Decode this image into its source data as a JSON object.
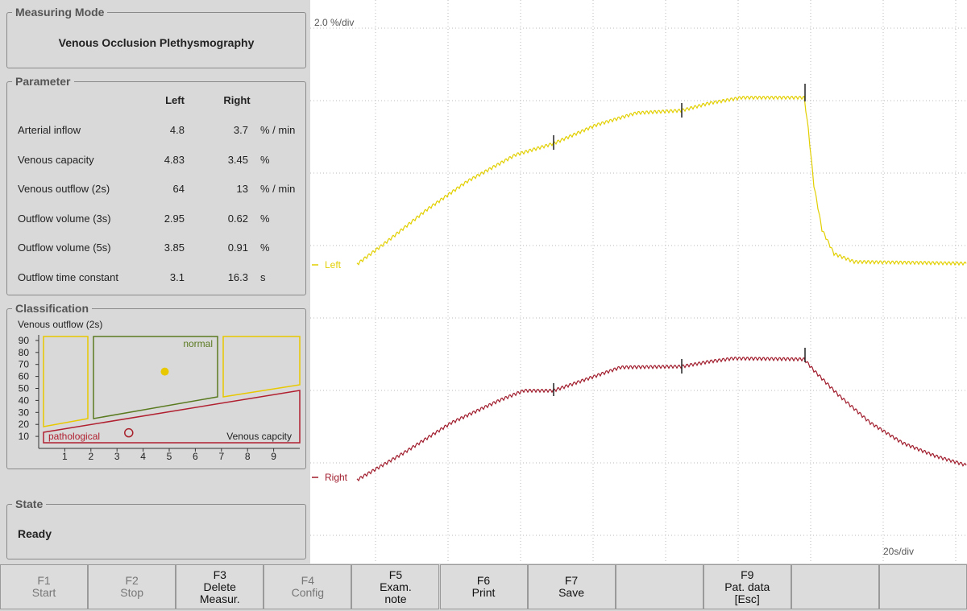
{
  "measuring_mode": {
    "title": "Measuring Mode",
    "value": "Venous Occlusion Plethysmography"
  },
  "parameter": {
    "title": "Parameter",
    "columns": [
      "Left",
      "Right"
    ],
    "rows": [
      {
        "label": "Arterial inflow",
        "left": 4.8,
        "right": 3.7,
        "unit": "% / min"
      },
      {
        "label": "Venous capacity",
        "left": 4.83,
        "right": 3.45,
        "unit": "%"
      },
      {
        "label": "Venous outflow (2s)",
        "left": 64,
        "right": 13,
        "unit": "% / min"
      },
      {
        "label": "Outflow volume (3s)",
        "left": 2.95,
        "right": 0.62,
        "unit": "%"
      },
      {
        "label": "Outflow volume (5s)",
        "left": 3.85,
        "right": 0.91,
        "unit": "%"
      },
      {
        "label": "Outflow time constant",
        "left": 3.1,
        "right": 16.3,
        "unit": "s"
      }
    ]
  },
  "classification": {
    "title": "Classification",
    "y_label": "Venous outflow (2s)",
    "x_label": "Venous capcity",
    "normal_label": "normal",
    "pathological_label": "pathological",
    "yticks": [
      10,
      20,
      30,
      40,
      50,
      60,
      70,
      80,
      90
    ],
    "xticks": [
      1,
      2,
      3,
      4,
      5,
      6,
      7,
      8,
      9
    ],
    "left_color": "#e8c800",
    "right_color": "#a8202a"
  },
  "state": {
    "title": "State",
    "value": "Ready"
  },
  "trace": {
    "y_scale": "2.0 %/div",
    "x_scale": "20s/div",
    "channels": [
      {
        "name": "Left",
        "color": "#e2cf00"
      },
      {
        "name": "Right",
        "color": "#a01c2c"
      }
    ]
  },
  "keys": [
    {
      "key": "F1",
      "lines": [
        "Start"
      ],
      "enabled": false
    },
    {
      "key": "F2",
      "lines": [
        "Stop"
      ],
      "enabled": false
    },
    {
      "key": "F3",
      "lines": [
        "Delete",
        "Measur."
      ],
      "enabled": true
    },
    {
      "key": "F4",
      "lines": [
        "Config"
      ],
      "enabled": false
    },
    {
      "key": "F5",
      "lines": [
        "Exam.",
        "note"
      ],
      "enabled": true
    },
    {
      "key": "F6",
      "lines": [
        "Print"
      ],
      "enabled": true
    },
    {
      "key": "F7",
      "lines": [
        "Save"
      ],
      "enabled": true
    },
    null,
    {
      "key": "F9",
      "lines": [
        "Pat. data",
        "[Esc]"
      ],
      "enabled": true
    },
    null,
    null
  ]
}
